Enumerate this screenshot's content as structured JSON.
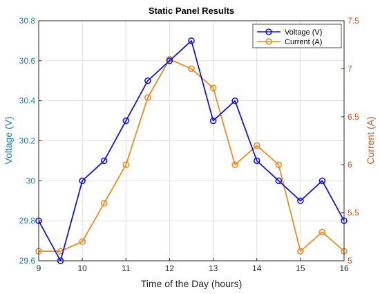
{
  "chart_data": {
    "type": "line",
    "title": "Static Panel Results",
    "xlabel": "Time of the Day (hours)",
    "ylabel_left": "Voltage (V)",
    "ylabel_right": "Current (A)",
    "xlim": [
      9,
      16
    ],
    "ylim_left": [
      29.6,
      30.8
    ],
    "ylim_right": [
      5,
      7.5
    ],
    "x_ticks": [
      "9",
      "10",
      "11",
      "12",
      "13",
      "14",
      "15",
      "16"
    ],
    "y_ticks_left": [
      "29.6",
      "29.8",
      "30",
      "30.2",
      "30.4",
      "30.6",
      "30.8"
    ],
    "y_ticks_right": [
      "5",
      "5.5",
      "6",
      "6.5",
      "7",
      "7.5"
    ],
    "grid": true,
    "legend_position": "top-right",
    "x": [
      9,
      9.5,
      10,
      10.5,
      11,
      11.5,
      12,
      12.5,
      13,
      13.5,
      14,
      14.5,
      15,
      15.5,
      16
    ],
    "series": [
      {
        "name": "Voltage (V)",
        "axis": "left",
        "color": "#1515d8",
        "values": [
          29.8,
          29.6,
          30.0,
          30.1,
          30.3,
          30.5,
          30.6,
          30.7,
          30.3,
          30.4,
          30.1,
          30.0,
          29.9,
          30.0,
          29.8
        ]
      },
      {
        "name": "Current (A)",
        "axis": "right",
        "color": "#f08c1e",
        "values": [
          5.1,
          5.1,
          5.2,
          5.6,
          6.0,
          6.7,
          7.1,
          7.0,
          6.8,
          6.0,
          6.2,
          6.0,
          5.1,
          5.3,
          5.1
        ]
      }
    ],
    "axis_colors": {
      "left": "#1a7fc1",
      "right": "#d9531e"
    }
  }
}
